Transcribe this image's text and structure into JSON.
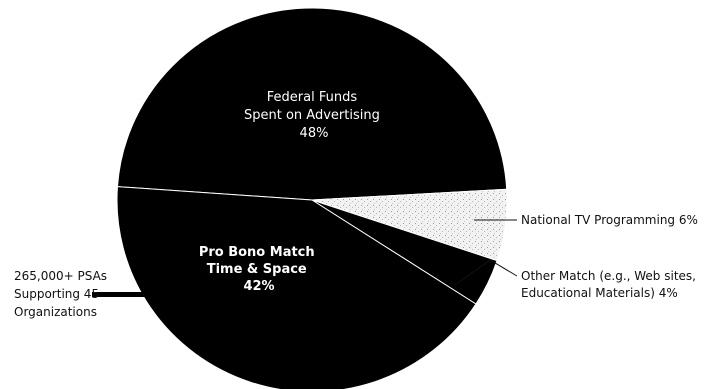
{
  "chart_data": {
    "type": "pie",
    "title": "",
    "slices": [
      {
        "id": "federal",
        "label_lines": [
          "Federal Funds",
          "Spent on Advertising",
          "48%"
        ],
        "value": 48,
        "color": "#000000"
      },
      {
        "id": "national_tv",
        "label_lines": [
          "National TV Programming 6%"
        ],
        "value": 6,
        "color": "#ebebeb"
      },
      {
        "id": "other_match",
        "label_lines": [
          "Other Match (e.g., Web sites,",
          "Educational Materials) 4%"
        ],
        "value": 4,
        "color": "#000000"
      },
      {
        "id": "pro_bono",
        "label_lines": [
          "Pro Bono Match",
          "Time & Space",
          "42%"
        ],
        "value": 42,
        "color": "#000000"
      }
    ],
    "annotations": [
      {
        "id": "psas",
        "text_lines": [
          "265,000+ PSAs",
          "Supporting 45",
          "Organizations"
        ]
      }
    ],
    "legend": "none"
  }
}
